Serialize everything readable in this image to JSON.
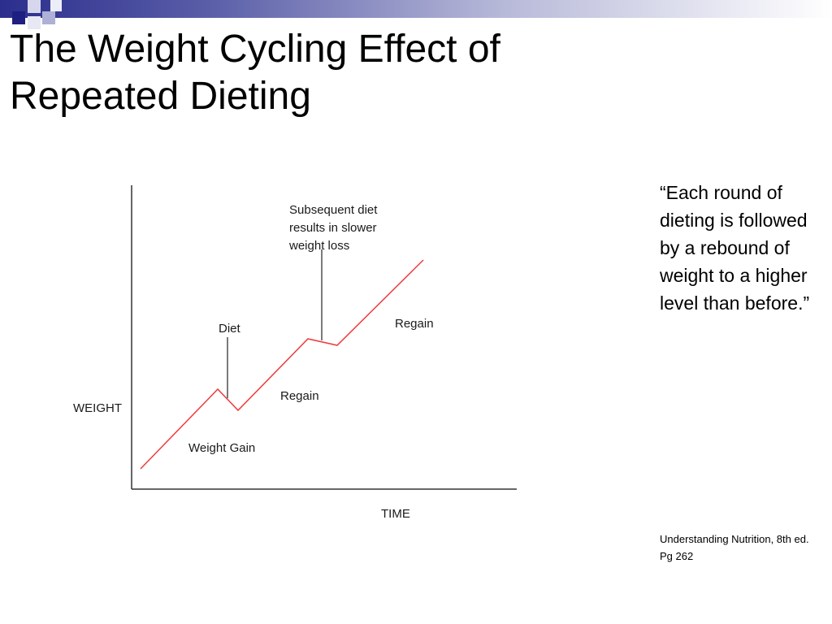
{
  "slide": {
    "title": "The Weight Cycling Effect of\nRepeated Dieting"
  },
  "diagram": {
    "y_axis_label": "WEIGHT",
    "x_axis_label": "TIME",
    "annotations": {
      "weight_gain": "Weight Gain",
      "diet": "Diet",
      "regain_1": "Regain",
      "subsequent_line1": "Subsequent diet",
      "subsequent_line2": "results in slower",
      "subsequent_line3": "weight loss",
      "regain_2": "Regain"
    },
    "line_color": "#ee3b3b"
  },
  "quote": "“Each round of dieting is followed by a rebound of weight to a higher level than before.”",
  "citation": {
    "source": "Understanding Nutrition, 8th ed.",
    "page": "Pg 262"
  }
}
